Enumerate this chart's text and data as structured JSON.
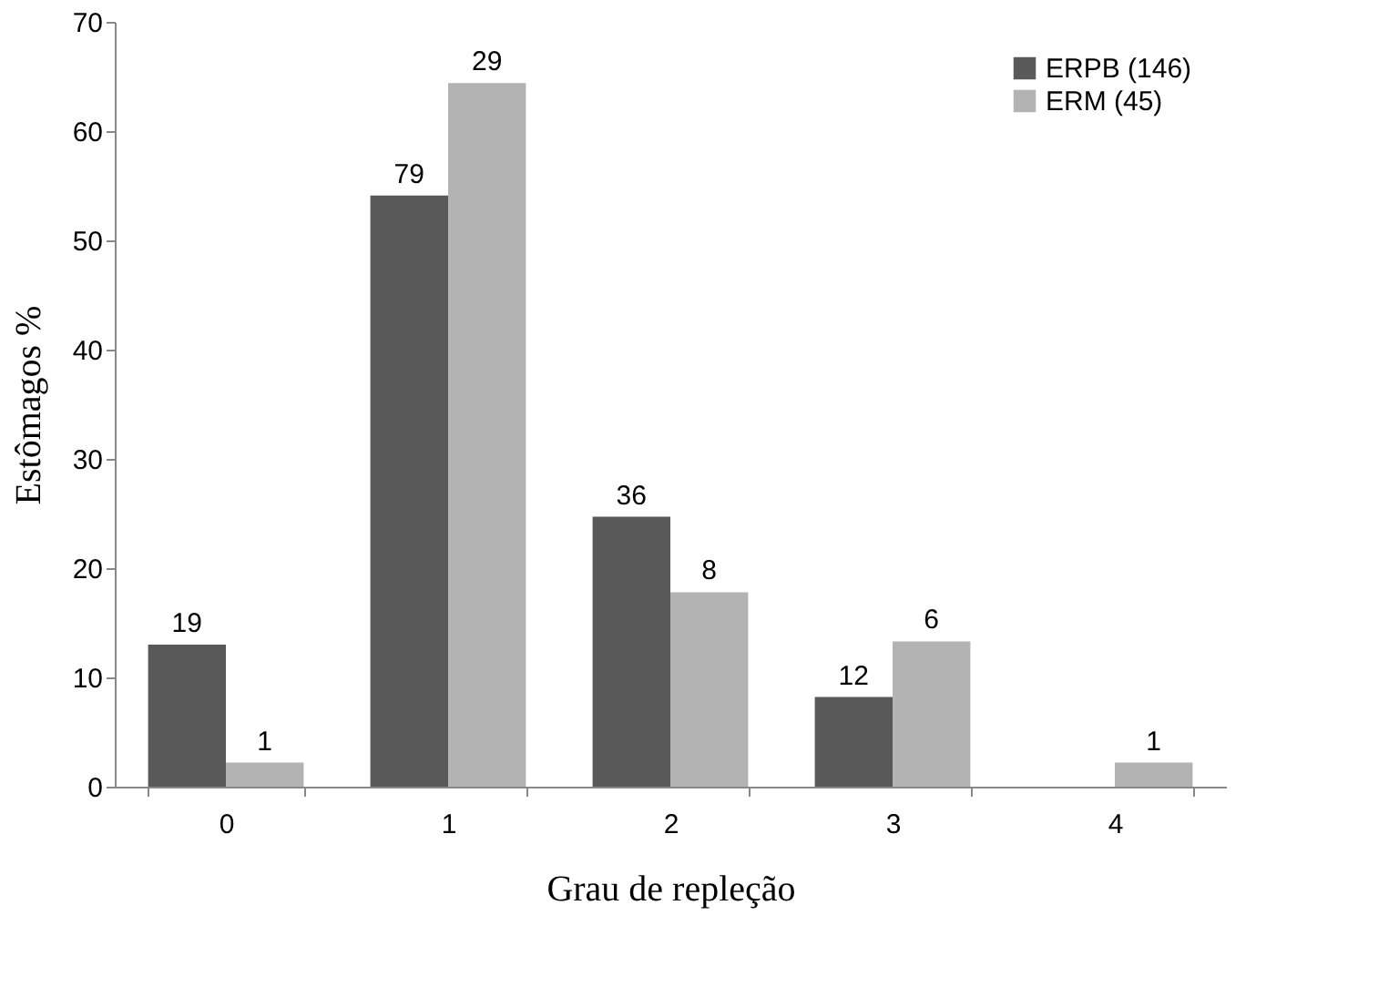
{
  "chart_data": {
    "type": "bar",
    "xlabel": "Grau de repleção",
    "ylabel": "Estômagos %",
    "categories": [
      "0",
      "1",
      "2",
      "3",
      "4"
    ],
    "series": [
      {
        "name": "ERPB (146)",
        "color": "#595959",
        "values": [
          13.0,
          54.1,
          24.7,
          8.2,
          null
        ]
      },
      {
        "name": "ERM (45)",
        "color": "#b3b3b3",
        "values": [
          2.2,
          64.4,
          17.8,
          13.3,
          2.2
        ]
      }
    ],
    "annotations": [
      {
        "text": "19",
        "x": "0",
        "y": 13.0
      },
      {
        "text": "1",
        "x": "0",
        "y": 2.2
      },
      {
        "text": "79",
        "x": "1",
        "y": 54.1
      },
      {
        "text": "29",
        "x": "1",
        "y": 64.4
      },
      {
        "text": "36",
        "x": "2",
        "y": 24.7
      },
      {
        "text": "8",
        "x": "2",
        "y": 17.8
      },
      {
        "text": "12",
        "x": "3",
        "y": 8.2
      },
      {
        "text": "6",
        "x": "3",
        "y": 13.3
      },
      {
        "text": "1",
        "x": "4",
        "y": 2.2
      }
    ],
    "ylim": [
      0,
      70
    ],
    "yticks": [
      0,
      10,
      20,
      30,
      40,
      50,
      60,
      70
    ],
    "grid": false,
    "legend": "top right"
  }
}
